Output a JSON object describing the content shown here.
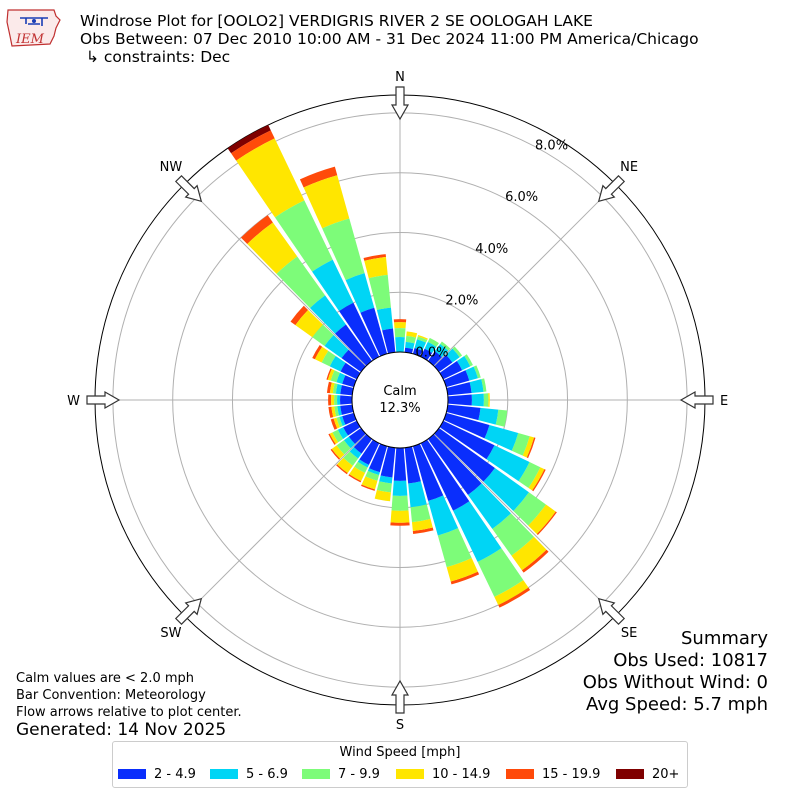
{
  "logo": {
    "text": "IEM"
  },
  "title": {
    "line1": "Windrose Plot for [OOLO2] VERDIGRIS RIVER 2 SE OOLOGAH LAKE",
    "line2": "Obs Between: 07 Dec 2010 10:00 AM - 31 Dec 2024 11:00 PM America/Chicago",
    "line3": "↳ constraints: Dec"
  },
  "notes": {
    "calm_def": "Calm values are < 2.0 mph",
    "bar_convention": "Bar Convention: Meteorology",
    "flow_arrows": "Flow arrows relative to plot center.",
    "generated": "Generated: 14 Nov 2025"
  },
  "summary": {
    "title": "Summary",
    "obs_used": "Obs Used: 10817",
    "obs_without_wind": "Obs Without Wind: 0",
    "avg_speed": "Avg Speed: 5.7 mph"
  },
  "legend": {
    "title": "Wind Speed [mph]",
    "items": [
      {
        "label": "2 - 4.9",
        "color": "#0a2efc"
      },
      {
        "label": "5 - 6.9",
        "color": "#00d5f5"
      },
      {
        "label": "7 - 9.9",
        "color": "#7dfc79"
      },
      {
        "label": "10 - 14.9",
        "color": "#ffe600"
      },
      {
        "label": "15 - 19.9",
        "color": "#ff4a0a"
      },
      {
        "label": "20+",
        "color": "#7f0000"
      }
    ]
  },
  "chart_data": {
    "type": "windrose",
    "calm_label": "Calm",
    "calm_value": "12.3%",
    "calm_percent": 12.3,
    "r_max": 8.6,
    "r_ticks": [
      0,
      2,
      4,
      6,
      8
    ],
    "r_tick_labels": [
      "0.0%",
      "2.0%",
      "4.0%",
      "6.0%",
      "8.0%"
    ],
    "compass_labels": [
      "N",
      "NE",
      "E",
      "SE",
      "S",
      "SW",
      "W",
      "NW"
    ],
    "grid": true,
    "legend_position": "bottom",
    "bins": [
      "2 - 4.9",
      "5 - 6.9",
      "7 - 9.9",
      "10 - 14.9",
      "15 - 19.9",
      "20+"
    ],
    "directions_deg": [
      0,
      10,
      20,
      30,
      40,
      50,
      60,
      70,
      80,
      90,
      100,
      110,
      120,
      130,
      140,
      150,
      160,
      170,
      180,
      190,
      200,
      210,
      220,
      230,
      240,
      250,
      260,
      270,
      280,
      290,
      300,
      310,
      320,
      330,
      340,
      350
    ],
    "cumulative_percent": [
      [
        0.0,
        0.5,
        0.8,
        1.0,
        1.1,
        1.1
      ],
      [
        0.15,
        0.35,
        0.55,
        0.7,
        0.7,
        0.7
      ],
      [
        0.2,
        0.5,
        0.6,
        0.65,
        0.65,
        0.65
      ],
      [
        0.3,
        0.55,
        0.7,
        0.7,
        0.7,
        0.7
      ],
      [
        0.4,
        0.7,
        0.8,
        0.8,
        0.8,
        0.8
      ],
      [
        0.55,
        0.85,
        0.95,
        0.95,
        0.95,
        0.95
      ],
      [
        0.7,
        1.0,
        1.1,
        1.1,
        1.1,
        1.1
      ],
      [
        0.8,
        1.1,
        1.2,
        1.2,
        1.2,
        1.2
      ],
      [
        0.8,
        1.2,
        1.3,
        1.3,
        1.3,
        1.3
      ],
      [
        0.8,
        1.2,
        1.35,
        1.4,
        1.4,
        1.4
      ],
      [
        1.1,
        1.7,
        2.0,
        2.0,
        2.0,
        2.0
      ],
      [
        1.5,
        2.5,
        2.9,
        3.05,
        3.1,
        3.1
      ],
      [
        1.9,
        3.2,
        3.6,
        3.75,
        3.8,
        3.8
      ],
      [
        2.3,
        3.7,
        4.4,
        4.8,
        4.85,
        4.85
      ],
      [
        2.3,
        3.7,
        4.8,
        5.4,
        5.5,
        5.5
      ],
      [
        2.5,
        4.4,
        5.7,
        6.0,
        6.1,
        6.1
      ],
      [
        1.9,
        3.1,
        4.2,
        4.7,
        4.8,
        4.8
      ],
      [
        1.2,
        2.0,
        2.5,
        2.8,
        2.9,
        2.9
      ],
      [
        1.1,
        1.6,
        2.1,
        2.5,
        2.6,
        2.6
      ],
      [
        1.0,
        1.2,
        1.5,
        1.8,
        1.8,
        1.8
      ],
      [
        0.9,
        1.0,
        1.2,
        1.5,
        1.55,
        1.55
      ],
      [
        0.8,
        0.9,
        1.1,
        1.4,
        1.45,
        1.45
      ],
      [
        0.6,
        0.8,
        1.1,
        1.4,
        1.45,
        1.45
      ],
      [
        0.5,
        0.7,
        1.0,
        1.2,
        1.25,
        1.25
      ],
      [
        0.5,
        0.7,
        0.9,
        1.0,
        1.05,
        1.05
      ],
      [
        0.4,
        0.5,
        0.6,
        0.7,
        0.8,
        0.8
      ],
      [
        0.4,
        0.5,
        0.6,
        0.7,
        0.8,
        0.8
      ],
      [
        0.4,
        0.5,
        0.6,
        0.7,
        0.8,
        0.8
      ],
      [
        0.4,
        0.55,
        0.65,
        0.75,
        0.85,
        0.85
      ],
      [
        0.4,
        0.6,
        0.8,
        0.9,
        0.95,
        0.95
      ],
      [
        0.6,
        1.0,
        1.3,
        1.55,
        1.65,
        1.65
      ],
      [
        0.8,
        1.5,
        2.0,
        2.7,
        2.9,
        2.9
      ],
      [
        1.5,
        2.7,
        4.3,
        5.7,
        6.0,
        6.0
      ],
      [
        2.0,
        3.6,
        5.8,
        8.1,
        8.4,
        8.6
      ],
      [
        1.6,
        2.8,
        4.7,
        6.2,
        6.5,
        6.5
      ],
      [
        0.8,
        1.5,
        2.6,
        3.2,
        3.3,
        3.3
      ]
    ]
  }
}
